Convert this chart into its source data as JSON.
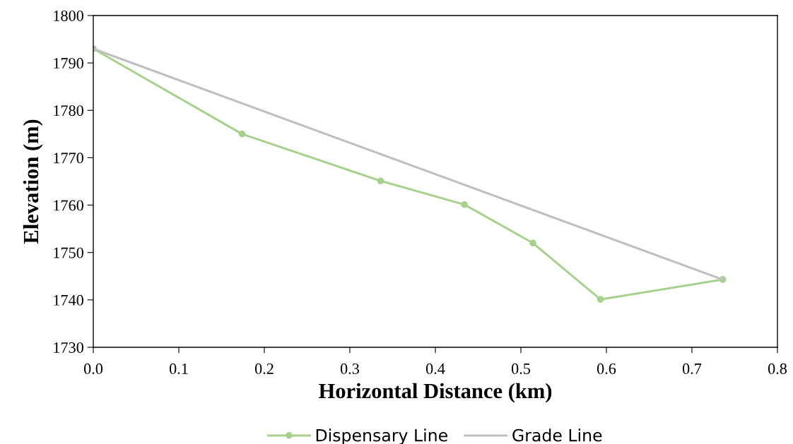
{
  "chart_data": {
    "type": "line",
    "xlabel": "Horizontal Distance (km)",
    "ylabel": "Elevation (m)",
    "series": [
      {
        "name": "Dispensary Line",
        "color": "#a9d18e",
        "marker": "circle",
        "x": [
          0.0,
          0.174,
          0.336,
          0.434,
          0.514,
          0.593,
          0.736
        ],
        "values": [
          1793,
          1775,
          1765.1,
          1760.1,
          1752,
          1740.1,
          1744.3
        ]
      },
      {
        "name": "Grade Line",
        "color": "#bfbfbf",
        "marker": "none",
        "x": [
          0.0,
          0.736
        ],
        "values": [
          1793,
          1744.3
        ]
      }
    ],
    "xlim": [
      0,
      0.8
    ],
    "xticks": [
      {
        "value": 0,
        "label": "0.0"
      },
      0.1,
      0.2,
      0.3,
      0.4,
      0.5,
      0.6,
      0.7,
      0.8
    ],
    "ylim": [
      1730,
      1800
    ],
    "yticks": [
      1730,
      1740,
      1750,
      1760,
      1770,
      1780,
      1790,
      1800
    ],
    "grid": false,
    "legend": "bottom",
    "line_style": "solid"
  }
}
